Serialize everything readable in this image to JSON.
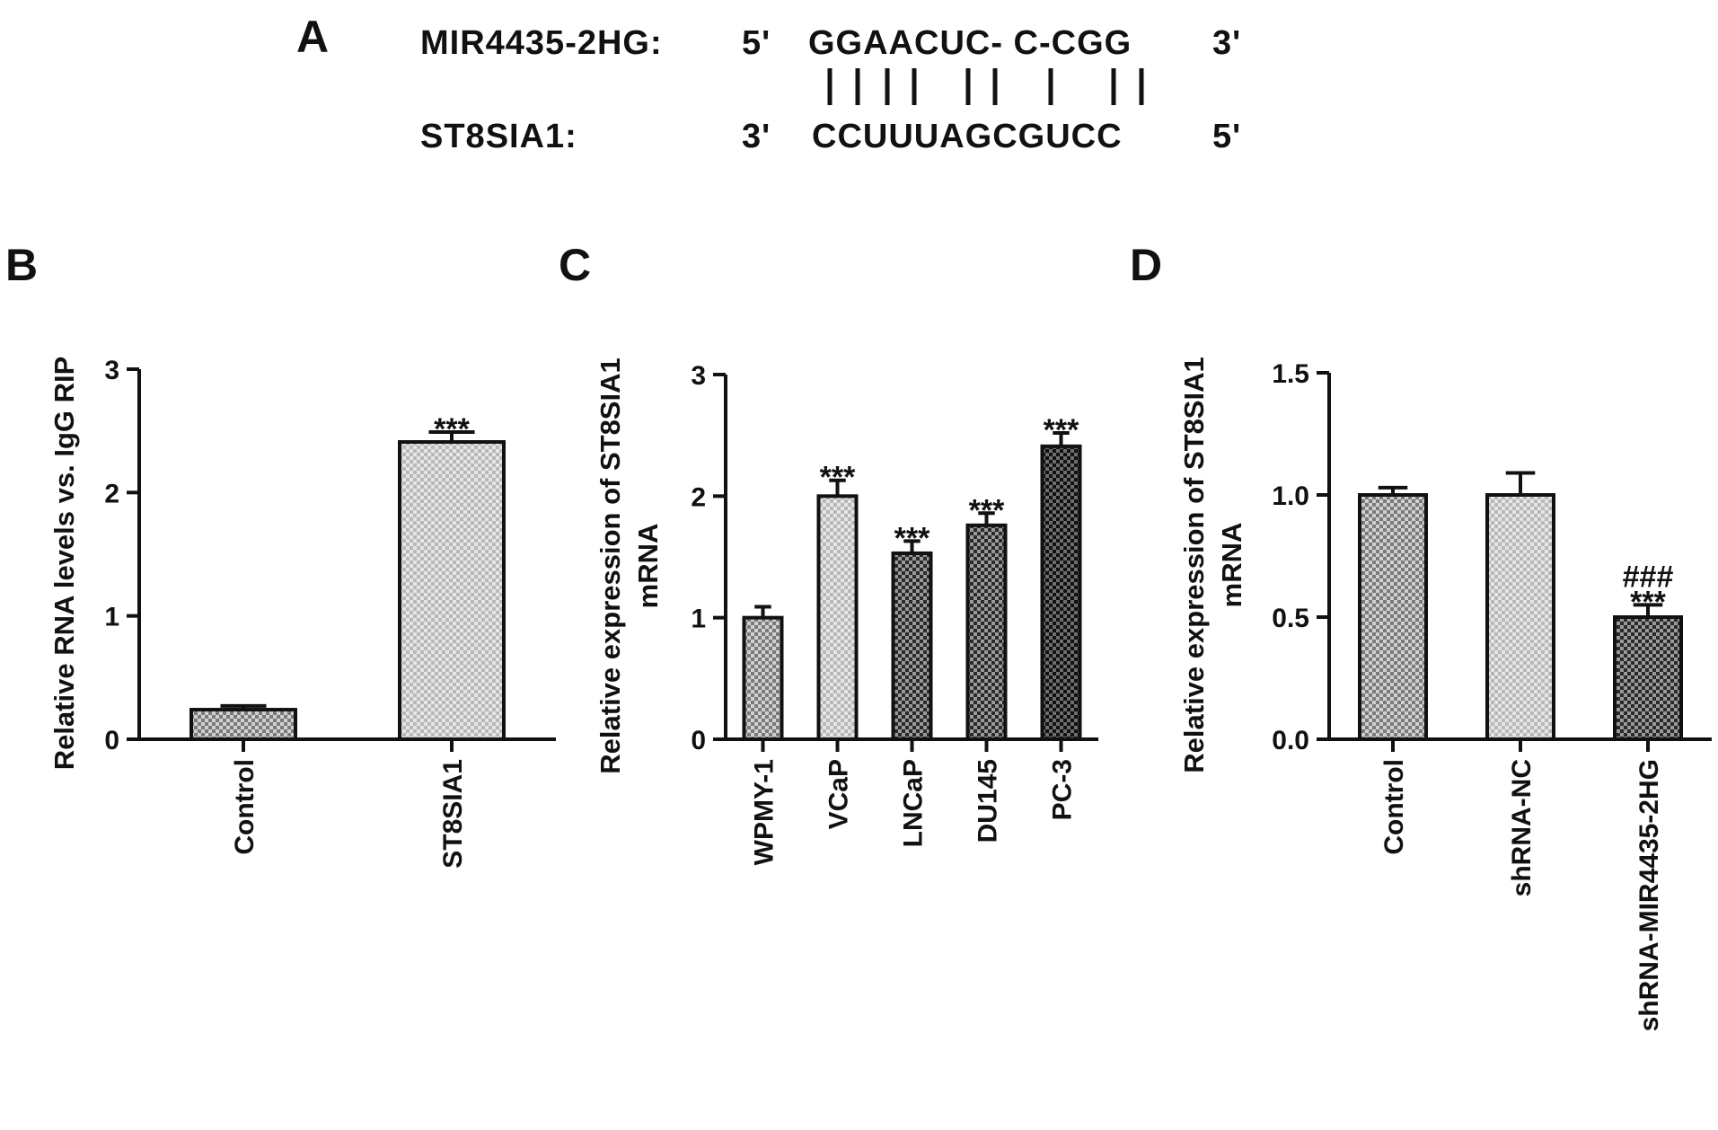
{
  "panel_a": {
    "label": "A",
    "rows": [
      {
        "name": "MIR4435-2HG:",
        "end_left": "5'",
        "sequence": "GGAACUC- C-CGG",
        "end_right": "3'"
      },
      {
        "name": "ST8SIA1:",
        "end_left": "3'",
        "sequence": "CCUUUAGCGUCC",
        "end_right": "5'"
      }
    ],
    "pairing_marks": "| | | |   | |   |   | |"
  },
  "chart_data": [
    {
      "panel": "B",
      "type": "bar",
      "categories": [
        "Control",
        "ST8SIA1"
      ],
      "values": [
        0.24,
        2.41
      ],
      "errors": [
        0.03,
        0.08
      ],
      "annotations": [
        "",
        "***"
      ],
      "ylabel": "Relative RNA levels vs. IgG RIP",
      "xlabel": "",
      "ylim": [
        0,
        3
      ],
      "yticks": [
        "0",
        "1",
        "2",
        "3"
      ],
      "legend": "none",
      "grid": false
    },
    {
      "panel": "C",
      "type": "bar",
      "categories": [
        "WPMY-1",
        "VCaP",
        "LNCaP",
        "DU145",
        "PC-3"
      ],
      "values": [
        1.0,
        2.0,
        1.53,
        1.76,
        2.41
      ],
      "errors": [
        0.09,
        0.13,
        0.1,
        0.1,
        0.11
      ],
      "annotations": [
        "",
        "***",
        "***",
        "***",
        "***"
      ],
      "ylabel_lines": [
        "Relative expression of ST8SIA1",
        "mRNA"
      ],
      "xlabel": "",
      "ylim": [
        0,
        3
      ],
      "yticks": [
        "0",
        "1",
        "2",
        "3"
      ],
      "legend": "none",
      "grid": false
    },
    {
      "panel": "D",
      "type": "bar",
      "categories": [
        "Control",
        "shRNA-NC",
        "shRNA-MIR4435-2HG"
      ],
      "values": [
        1.0,
        1.0,
        0.5
      ],
      "errors": [
        0.03,
        0.09,
        0.05
      ],
      "annotations": [
        "",
        "",
        "***"
      ],
      "annotations2": [
        "",
        "",
        "###"
      ],
      "ylabel_lines": [
        "Relative expression of ST8SIA1",
        "mRNA"
      ],
      "xlabel": "",
      "ylim": [
        0,
        1.5
      ],
      "yticks": [
        "0.0",
        "0.5",
        "1.0",
        "1.5"
      ],
      "legend": "none",
      "grid": false
    }
  ]
}
